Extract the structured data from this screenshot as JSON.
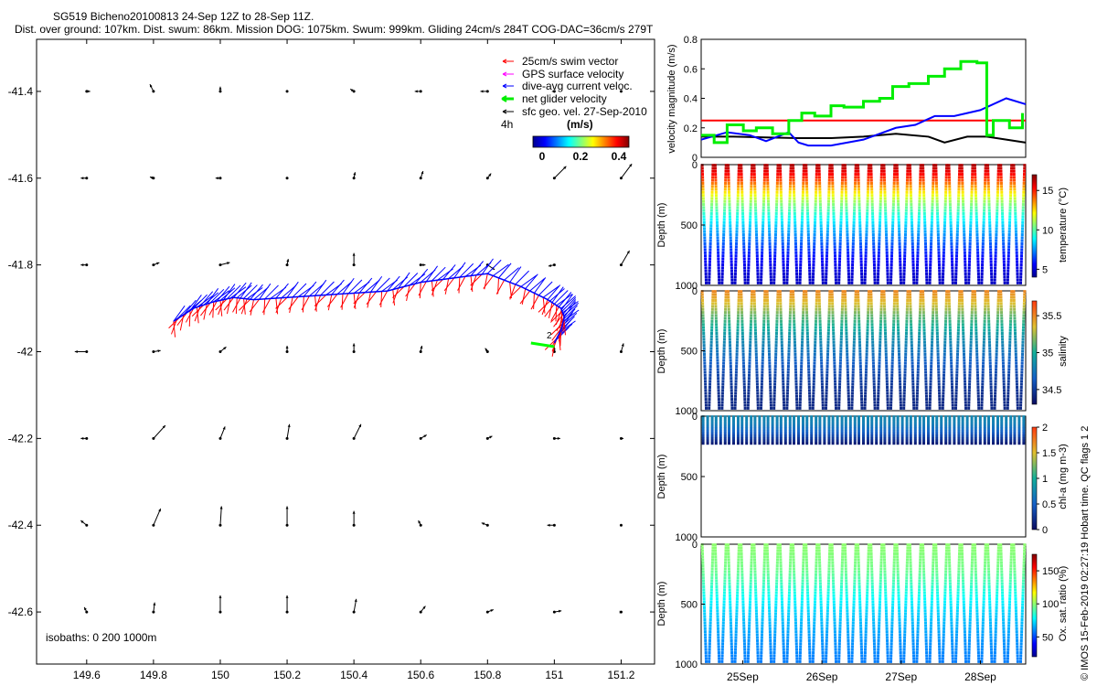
{
  "title": {
    "line1": "SG519 Bicheno20100813 24-Sep 12Z to 28-Sep 11Z.",
    "line2": "Dist. over ground: 107km. Dist. swum: 86km. Mission DOG: 1075km. Swum: 999km. Gliding 24cm/s 284T COG-DAC=36cm/s 279T"
  },
  "credit": "© IMOS 15-Feb-2019 02:27:19 Hobart time. QC flags 1  2",
  "colors": {
    "swim": "#ff0000",
    "gps": "#ff00ff",
    "dac": "#0000ff",
    "net": "#00ff00",
    "geo": "#000000"
  },
  "chart_data": [
    {
      "type": "scatter",
      "panel": "map",
      "xlim": [
        149.45,
        151.3
      ],
      "ylim": [
        -42.72,
        -41.28
      ],
      "x_ticks": [
        "149.6",
        "149.8",
        "150",
        "150.2",
        "150.4",
        "150.6",
        "150.8",
        "151",
        "151.2"
      ],
      "x_tick_values": [
        149.6,
        149.8,
        150.0,
        150.2,
        150.4,
        150.6,
        150.8,
        151.0,
        151.2
      ],
      "y_ticks": [
        "-41.4",
        "-41.6",
        "-41.8",
        "-42",
        "-42.2",
        "-42.4",
        "-42.6"
      ],
      "y_tick_values": [
        -41.4,
        -41.6,
        -41.8,
        -42.0,
        -42.2,
        -42.4,
        -42.6
      ],
      "legend": {
        "items": [
          "25cm/s swim vector",
          "GPS surface velocity",
          "dive-avg current veloc.",
          "net glider velocity",
          "sfc geo. vel. 27-Sep-2010"
        ],
        "scale_label": "4h",
        "colorbar_title": "(m/s)",
        "colorbar_ticks": [
          "0",
          "0.2",
          "0.4"
        ],
        "colorbar_range": [
          0,
          0.5
        ]
      },
      "isobaths_label": "isobaths: 0   200  1000m",
      "marker_label": "2",
      "track": {
        "lon": [
          149.86,
          149.92,
          149.98,
          150.04,
          150.1,
          150.2,
          150.3,
          150.4,
          150.5,
          150.6,
          150.7,
          150.8,
          150.9,
          150.98,
          151.02,
          151.03,
          151.02,
          151.0
        ],
        "lat": [
          -41.93,
          -41.9,
          -41.885,
          -41.875,
          -41.88,
          -41.875,
          -41.87,
          -41.865,
          -41.86,
          -41.84,
          -41.83,
          -41.82,
          -41.85,
          -41.88,
          -41.9,
          -41.92,
          -41.95,
          -41.98
        ]
      },
      "vectors": {
        "swim": {
          "direction_deg": 200,
          "speed_ms": 0.25
        },
        "dac": {
          "direction_deg": 45,
          "speed_ms": 0.3
        },
        "net_glider_end": {
          "lon": 150.93,
          "lat": -41.98
        }
      },
      "geostrophic_grid": {
        "lon": [
          149.6,
          149.8,
          150.0,
          150.2,
          150.4,
          150.6,
          150.8,
          151.0,
          151.2
        ],
        "lat": [
          -41.4,
          -41.6,
          -41.8,
          -42.0,
          -42.2,
          -42.4,
          -42.6
        ],
        "u": [
          [
            0.03,
            -0.03,
            0.0,
            0.0,
            -0.03,
            -0.05,
            -0.06,
            -0.02,
            0.0
          ],
          [
            -0.05,
            -0.03,
            -0.04,
            0.0,
            0.01,
            0.02,
            0.03,
            0.1,
            0.09
          ],
          [
            -0.05,
            0.05,
            0.08,
            0.01,
            0.0,
            0.04,
            0.06,
            -0.05,
            0.07
          ],
          [
            -0.1,
            0.06,
            0.05,
            0.0,
            0.0,
            0.01,
            -0.02,
            0.0,
            0.02
          ],
          [
            -0.05,
            0.1,
            0.04,
            0.02,
            0.06,
            0.05,
            0.04,
            0.05,
            0.02
          ],
          [
            -0.05,
            0.06,
            0.01,
            0.0,
            0.0,
            -0.02,
            -0.05,
            -0.06,
            0.0
          ],
          [
            -0.02,
            0.01,
            0.0,
            0.0,
            0.02,
            0.04,
            0.05,
            0.06,
            0.01
          ]
        ],
        "v": [
          [
            0.0,
            0.06,
            0.04,
            0.0,
            0.02,
            0.0,
            0.0,
            0.0,
            0.0
          ],
          [
            0.0,
            0.01,
            0.0,
            0.0,
            0.05,
            0.06,
            0.04,
            0.1,
            0.12
          ],
          [
            0.0,
            0.02,
            0.02,
            0.05,
            0.1,
            0.0,
            -0.04,
            -0.01,
            0.12
          ],
          [
            0.0,
            0.01,
            0.04,
            0.05,
            0.07,
            0.05,
            0.03,
            0.04,
            0.07
          ],
          [
            0.0,
            0.11,
            0.1,
            0.12,
            0.12,
            0.03,
            0.02,
            0.0,
            0.0
          ],
          [
            0.04,
            0.14,
            0.16,
            0.16,
            0.12,
            0.04,
            0.02,
            0.0,
            0.0
          ],
          [
            0.04,
            0.08,
            0.14,
            0.14,
            0.11,
            0.05,
            0.02,
            0.01,
            0.0
          ]
        ]
      }
    },
    {
      "type": "line",
      "panel": "velocity",
      "ylabel": "velocity magnitude (m/s)",
      "ylim": [
        0,
        0.8
      ],
      "y_ticks": [
        "0",
        "0.2",
        "0.4",
        "0.6",
        "0.8"
      ],
      "y_tick_values": [
        0,
        0.2,
        0.4,
        0.6,
        0.8
      ],
      "xlim": [
        0,
        1
      ],
      "series": [
        {
          "color": "#ff0000",
          "x": [
            0.0,
            1.0
          ],
          "values": [
            0.25,
            0.25
          ]
        },
        {
          "color": "#000000",
          "x": [
            0.0,
            0.1,
            0.2,
            0.3,
            0.4,
            0.5,
            0.6,
            0.7,
            0.75,
            0.82,
            0.88,
            0.94,
            1.0
          ],
          "values": [
            0.14,
            0.14,
            0.135,
            0.13,
            0.13,
            0.14,
            0.16,
            0.14,
            0.1,
            0.14,
            0.14,
            0.12,
            0.1
          ]
        },
        {
          "color": "#0000ff",
          "x": [
            0.0,
            0.08,
            0.15,
            0.2,
            0.27,
            0.3,
            0.33,
            0.4,
            0.5,
            0.6,
            0.66,
            0.72,
            0.78,
            0.86,
            0.94,
            1.0
          ],
          "values": [
            0.12,
            0.17,
            0.15,
            0.11,
            0.17,
            0.1,
            0.08,
            0.08,
            0.12,
            0.2,
            0.22,
            0.28,
            0.28,
            0.32,
            0.4,
            0.36
          ]
        },
        {
          "color": "#00ee00",
          "x": [
            0.0,
            0.04,
            0.04,
            0.08,
            0.08,
            0.13,
            0.13,
            0.17,
            0.17,
            0.22,
            0.22,
            0.27,
            0.27,
            0.31,
            0.31,
            0.35,
            0.35,
            0.4,
            0.4,
            0.44,
            0.44,
            0.5,
            0.5,
            0.55,
            0.55,
            0.59,
            0.59,
            0.64,
            0.64,
            0.7,
            0.7,
            0.75,
            0.75,
            0.8,
            0.8,
            0.85,
            0.85,
            0.88,
            0.88,
            0.9,
            0.9,
            0.95,
            0.95,
            0.99,
            0.99
          ],
          "values": [
            0.15,
            0.15,
            0.1,
            0.1,
            0.22,
            0.22,
            0.18,
            0.18,
            0.2,
            0.2,
            0.16,
            0.16,
            0.25,
            0.25,
            0.3,
            0.3,
            0.28,
            0.28,
            0.35,
            0.35,
            0.34,
            0.34,
            0.38,
            0.38,
            0.4,
            0.4,
            0.48,
            0.48,
            0.5,
            0.5,
            0.55,
            0.55,
            0.6,
            0.6,
            0.65,
            0.65,
            0.64,
            0.64,
            0.15,
            0.15,
            0.25,
            0.25,
            0.2,
            0.2,
            0.3
          ]
        }
      ]
    },
    {
      "type": "scatter",
      "panel": "temperature",
      "ylabel": "Depth (m)",
      "ylim": [
        1000,
        0
      ],
      "y_ticks": [
        "0",
        "500",
        "1000"
      ],
      "y_tick_values": [
        0,
        500,
        1000
      ],
      "n_dives": 25,
      "colorbar": {
        "label": "temperature (°C)",
        "ticks": [
          "5",
          "10",
          "15"
        ],
        "tick_values": [
          5,
          10,
          15
        ],
        "range": [
          4,
          17
        ]
      },
      "profile": {
        "depth": [
          0,
          100,
          200,
          300,
          400,
          500,
          600,
          700,
          800,
          900,
          1000
        ],
        "values": [
          16.5,
          15,
          13,
          11,
          9.5,
          8.3,
          7.3,
          6.3,
          5.5,
          5,
          4.7
        ]
      }
    },
    {
      "type": "scatter",
      "panel": "salinity",
      "ylabel": "Depth (m)",
      "ylim": [
        1000,
        0
      ],
      "y_ticks": [
        "0",
        "500",
        "1000"
      ],
      "y_tick_values": [
        0,
        500,
        1000
      ],
      "n_dives": 25,
      "colorbar": {
        "label": "salinity",
        "ticks": [
          "34.5",
          "35",
          "35.5"
        ],
        "tick_values": [
          34.5,
          35,
          35.5
        ],
        "range": [
          34.3,
          35.7
        ]
      },
      "profile": {
        "depth": [
          0,
          100,
          200,
          300,
          400,
          500,
          600,
          700,
          800,
          900,
          1000
        ],
        "values": [
          35.5,
          35.35,
          35.15,
          35.0,
          34.85,
          34.75,
          34.65,
          34.55,
          34.48,
          34.44,
          34.42
        ]
      }
    },
    {
      "type": "scatter",
      "panel": "chl",
      "ylabel": "Depth (m)",
      "ylim": [
        1000,
        0
      ],
      "y_ticks": [
        "0",
        "500",
        "1000"
      ],
      "y_tick_values": [
        0,
        500,
        1000
      ],
      "n_dives": 25,
      "colorbar": {
        "label": "chl-a (mg m-3)",
        "ticks": [
          "0",
          "0.5",
          "1",
          "1.5",
          "2"
        ],
        "tick_values": [
          0,
          0.5,
          1,
          1.5,
          2
        ],
        "range": [
          0,
          2
        ]
      },
      "profile": {
        "depth": [
          0,
          60,
          120,
          180,
          240
        ],
        "values": [
          0.75,
          0.7,
          0.55,
          0.3,
          0.05
        ]
      }
    },
    {
      "type": "scatter",
      "panel": "oxygen",
      "ylabel": "Depth (m)",
      "ylim": [
        1000,
        0
      ],
      "y_ticks": [
        "0",
        "500",
        "1000"
      ],
      "y_tick_values": [
        0,
        500,
        1000
      ],
      "n_dives": 25,
      "x_ticks": [
        "25Sep",
        "26Sep",
        "27Sep",
        "28Sep"
      ],
      "x_tick_values": [
        0.1279,
        0.3721,
        0.6163,
        0.8605
      ],
      "colorbar": {
        "label": "Ox. sat. ratio (%)",
        "ticks": [
          "50",
          "100",
          "150"
        ],
        "tick_values": [
          50,
          100,
          150
        ],
        "range": [
          20,
          175
        ]
      },
      "profile": {
        "depth": [
          0,
          100,
          200,
          300,
          400,
          500,
          600,
          700,
          800,
          900,
          1000
        ],
        "values": [
          100,
          98,
          96,
          90,
          82,
          75,
          70,
          66,
          62,
          60,
          58
        ]
      }
    }
  ]
}
